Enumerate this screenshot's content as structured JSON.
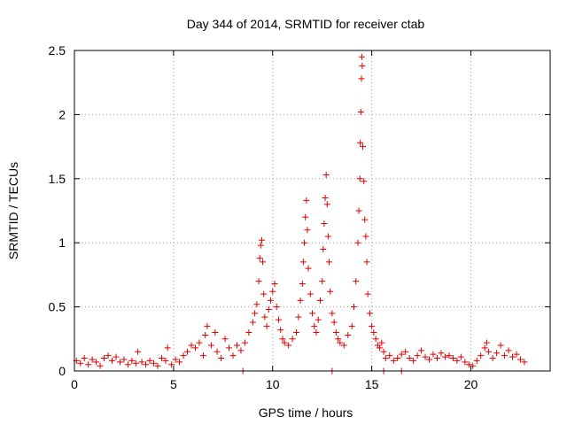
{
  "chart_data": {
    "type": "scatter",
    "title": "Day 344 of 2014, SRMTID for receiver ctab",
    "xlabel": "GPS time / hours",
    "ylabel": "SRMTID / TECUs",
    "xlim": [
      0,
      24
    ],
    "ylim": [
      0,
      2.5
    ],
    "x_ticks": [
      0,
      5,
      10,
      15,
      20
    ],
    "x_tick_labels": [
      "0",
      "5",
      "10",
      "15",
      "20"
    ],
    "y_ticks": [
      0,
      0.5,
      1,
      1.5,
      2,
      2.5
    ],
    "y_tick_labels": [
      "0",
      "0.5",
      "1",
      "1.5",
      "2",
      "2.5"
    ],
    "grid": true,
    "marker": "plus",
    "color": "#e00000",
    "series": [
      {
        "name": "SRMTID",
        "points": [
          [
            0.1,
            0.08
          ],
          [
            0.3,
            0.06
          ],
          [
            0.5,
            0.1
          ],
          [
            0.7,
            0.05
          ],
          [
            0.9,
            0.09
          ],
          [
            1.1,
            0.07
          ],
          [
            1.3,
            0.04
          ],
          [
            1.5,
            0.1
          ],
          [
            1.7,
            0.12
          ],
          [
            1.9,
            0.08
          ],
          [
            2.1,
            0.11
          ],
          [
            2.3,
            0.07
          ],
          [
            2.5,
            0.09
          ],
          [
            2.7,
            0.05
          ],
          [
            2.9,
            0.08
          ],
          [
            3.1,
            0.06
          ],
          [
            3.2,
            0.15
          ],
          [
            3.4,
            0.07
          ],
          [
            3.6,
            0.05
          ],
          [
            3.8,
            0.08
          ],
          [
            4.0,
            0.06
          ],
          [
            4.2,
            0.04
          ],
          [
            4.4,
            0.1
          ],
          [
            4.6,
            0.08
          ],
          [
            4.7,
            0.18
          ],
          [
            4.9,
            0.05
          ],
          [
            5.1,
            0.09
          ],
          [
            5.3,
            0.07
          ],
          [
            5.5,
            0.12
          ],
          [
            5.7,
            0.15
          ],
          [
            5.9,
            0.2
          ],
          [
            6.1,
            0.18
          ],
          [
            6.3,
            0.22
          ],
          [
            6.5,
            0.12
          ],
          [
            6.6,
            0.28
          ],
          [
            6.7,
            0.35
          ],
          [
            6.9,
            0.2
          ],
          [
            7.1,
            0.3
          ],
          [
            7.2,
            0.15
          ],
          [
            7.4,
            0.1
          ],
          [
            7.6,
            0.25
          ],
          [
            7.8,
            0.18
          ],
          [
            8.0,
            0.12
          ],
          [
            8.2,
            0.2
          ],
          [
            8.4,
            0.16
          ],
          [
            8.6,
            0.22
          ],
          [
            8.8,
            0.3
          ],
          [
            9.0,
            0.38
          ],
          [
            9.1,
            0.45
          ],
          [
            9.2,
            0.52
          ],
          [
            9.3,
            0.7
          ],
          [
            9.35,
            0.88
          ],
          [
            9.4,
            0.98
          ],
          [
            9.45,
            1.02
          ],
          [
            9.5,
            0.85
          ],
          [
            9.55,
            0.6
          ],
          [
            9.6,
            0.42
          ],
          [
            9.7,
            0.35
          ],
          [
            9.8,
            0.48
          ],
          [
            9.9,
            0.55
          ],
          [
            10.0,
            0.62
          ],
          [
            10.1,
            0.68
          ],
          [
            10.2,
            0.5
          ],
          [
            10.3,
            0.4
          ],
          [
            10.4,
            0.32
          ],
          [
            10.5,
            0.25
          ],
          [
            10.6,
            0.22
          ],
          [
            10.8,
            0.2
          ],
          [
            11.0,
            0.25
          ],
          [
            11.2,
            0.3
          ],
          [
            11.3,
            0.42
          ],
          [
            11.4,
            0.55
          ],
          [
            11.5,
            0.68
          ],
          [
            11.55,
            0.85
          ],
          [
            11.6,
            1.0
          ],
          [
            11.65,
            1.2
          ],
          [
            11.7,
            1.33
          ],
          [
            11.75,
            1.1
          ],
          [
            11.8,
            0.8
          ],
          [
            11.9,
            0.6
          ],
          [
            12.0,
            0.45
          ],
          [
            12.1,
            0.35
          ],
          [
            12.2,
            0.3
          ],
          [
            12.3,
            0.4
          ],
          [
            12.4,
            0.55
          ],
          [
            12.5,
            0.7
          ],
          [
            12.55,
            0.95
          ],
          [
            12.6,
            1.15
          ],
          [
            12.65,
            1.35
          ],
          [
            12.7,
            1.53
          ],
          [
            12.75,
            1.3
          ],
          [
            12.8,
            1.05
          ],
          [
            12.85,
            0.85
          ],
          [
            12.9,
            0.62
          ],
          [
            13.0,
            0.45
          ],
          [
            13.1,
            0.38
          ],
          [
            13.2,
            0.3
          ],
          [
            13.3,
            0.25
          ],
          [
            13.4,
            0.22
          ],
          [
            13.6,
            0.2
          ],
          [
            13.8,
            0.28
          ],
          [
            14.0,
            0.35
          ],
          [
            14.1,
            0.5
          ],
          [
            14.2,
            0.7
          ],
          [
            14.3,
            1.0
          ],
          [
            14.35,
            1.25
          ],
          [
            14.4,
            1.5
          ],
          [
            14.42,
            1.78
          ],
          [
            14.45,
            2.02
          ],
          [
            14.48,
            2.28
          ],
          [
            14.5,
            2.45
          ],
          [
            14.52,
            2.38
          ],
          [
            14.55,
            1.75
          ],
          [
            14.6,
            1.48
          ],
          [
            14.65,
            1.18
          ],
          [
            14.7,
            1.05
          ],
          [
            14.75,
            0.85
          ],
          [
            14.8,
            0.6
          ],
          [
            14.9,
            0.45
          ],
          [
            15.0,
            0.35
          ],
          [
            15.1,
            0.3
          ],
          [
            15.2,
            0.25
          ],
          [
            15.3,
            0.2
          ],
          [
            15.4,
            0.18
          ],
          [
            15.5,
            0.22
          ],
          [
            15.6,
            0.15
          ],
          [
            15.7,
            0.1
          ],
          [
            15.9,
            0.12
          ],
          [
            16.1,
            0.08
          ],
          [
            16.3,
            0.1
          ],
          [
            16.5,
            0.13
          ],
          [
            16.7,
            0.15
          ],
          [
            16.9,
            0.1
          ],
          [
            17.1,
            0.08
          ],
          [
            17.3,
            0.12
          ],
          [
            17.5,
            0.16
          ],
          [
            17.7,
            0.11
          ],
          [
            17.9,
            0.09
          ],
          [
            18.1,
            0.13
          ],
          [
            18.3,
            0.1
          ],
          [
            18.5,
            0.14
          ],
          [
            18.7,
            0.11
          ],
          [
            18.9,
            0.12
          ],
          [
            19.1,
            0.1
          ],
          [
            19.3,
            0.08
          ],
          [
            19.5,
            0.11
          ],
          [
            19.7,
            0.07
          ],
          [
            19.9,
            0.05
          ],
          [
            20.1,
            0.04
          ],
          [
            20.3,
            0.08
          ],
          [
            20.5,
            0.12
          ],
          [
            20.7,
            0.18
          ],
          [
            20.8,
            0.22
          ],
          [
            20.9,
            0.15
          ],
          [
            21.1,
            0.1
          ],
          [
            21.3,
            0.14
          ],
          [
            21.5,
            0.2
          ],
          [
            21.7,
            0.12
          ],
          [
            21.9,
            0.16
          ],
          [
            22.1,
            0.11
          ],
          [
            22.3,
            0.13
          ],
          [
            22.5,
            0.09
          ],
          [
            22.7,
            0.07
          ],
          [
            8.5,
            0.0
          ],
          [
            13.0,
            0.0
          ],
          [
            15.6,
            0.0
          ],
          [
            16.5,
            0.0
          ]
        ]
      }
    ]
  }
}
